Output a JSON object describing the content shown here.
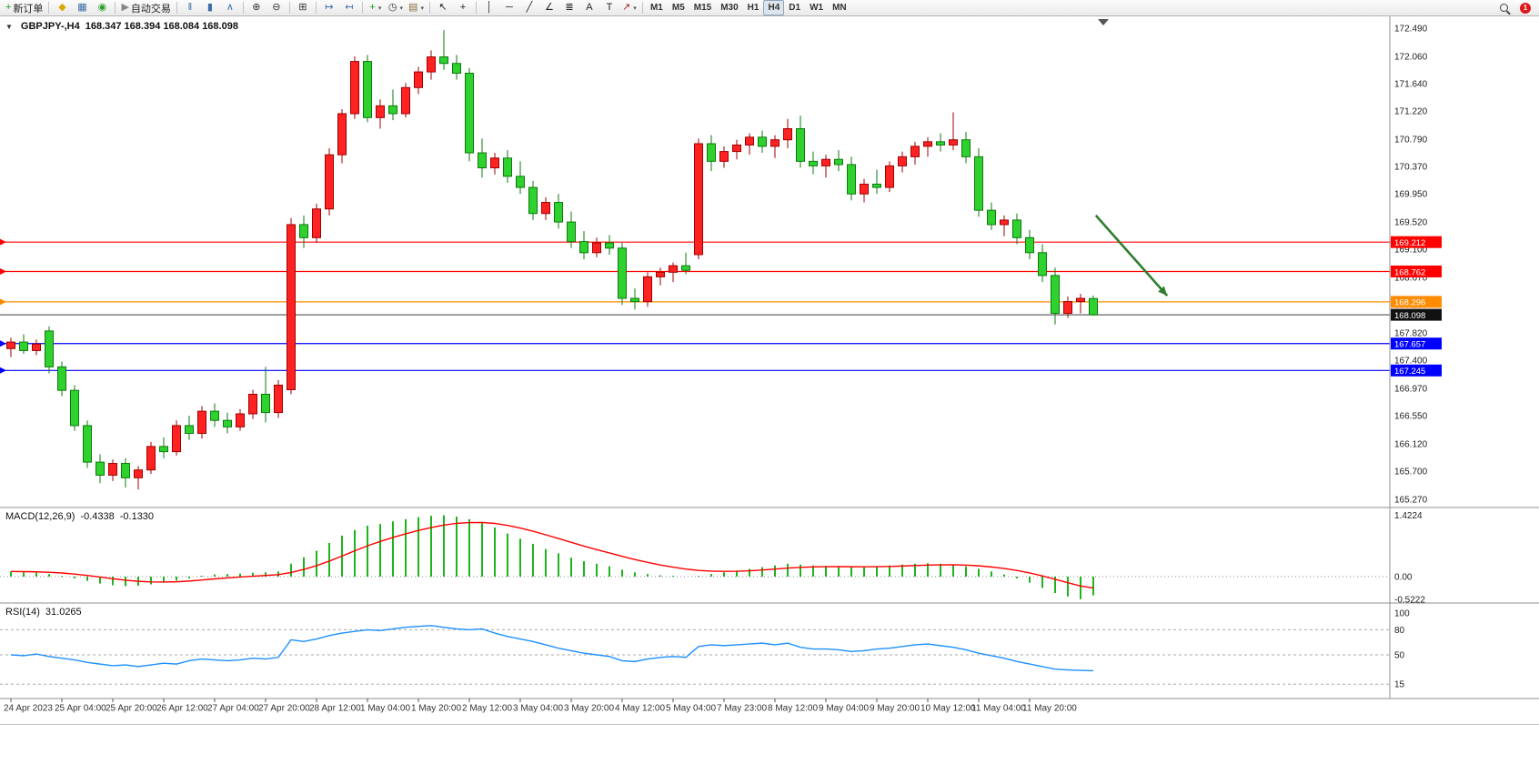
{
  "glyphs": {
    "one_click": "▼",
    "dropdown_caret": "▾"
  },
  "toolbar": {
    "badge": "1",
    "groups": [
      {
        "items": [
          {
            "name": "new-order-button",
            "label": "新订单",
            "glyph": "+",
            "color": "#17a017"
          }
        ]
      },
      {
        "items": [
          {
            "name": "quotes-icon",
            "glyph": "◆",
            "color": "#d8a800"
          },
          {
            "name": "profiles-icon",
            "glyph": "▦",
            "color": "#3a6ea5"
          },
          {
            "name": "refresh-icon",
            "glyph": "◉",
            "color": "#2e9e2e"
          }
        ]
      },
      {
        "items": [
          {
            "name": "auto-trading-button",
            "label": "自动交易",
            "glyph": "▶",
            "color": "#888888"
          }
        ]
      },
      {
        "items": [
          {
            "name": "bar-chart-icon",
            "glyph": "ǁ",
            "color": "#3a6ea5"
          },
          {
            "name": "candlestick-chart-icon",
            "glyph": "▮",
            "color": "#3a6ea5"
          },
          {
            "name": "line-chart-icon",
            "glyph": "∧",
            "color": "#3a6ea5"
          }
        ]
      },
      {
        "items": [
          {
            "name": "zoom-in-icon",
            "glyph": "⊕",
            "color": "#333333"
          },
          {
            "name": "zoom-out-icon",
            "glyph": "⊖",
            "color": "#333333"
          }
        ]
      },
      {
        "items": [
          {
            "name": "tile-windows-icon",
            "glyph": "⊞",
            "color": "#333333"
          }
        ]
      },
      {
        "items": [
          {
            "name": "auto-scroll-icon",
            "glyph": "↦",
            "color": "#3a6ea5"
          },
          {
            "name": "chart-shift-icon",
            "glyph": "↤",
            "color": "#3a6ea5"
          }
        ]
      },
      {
        "items": [
          {
            "name": "indicators-icon",
            "glyph": "+",
            "color": "#17a017",
            "dropdown": true
          },
          {
            "name": "periods-icon",
            "glyph": "◷",
            "color": "#333333",
            "dropdown": true
          },
          {
            "name": "templates-icon",
            "glyph": "▤",
            "color": "#8a6d3b",
            "dropdown": true
          }
        ]
      },
      {
        "items": [
          {
            "name": "cursor-icon",
            "glyph": "↖",
            "color": "#222222"
          },
          {
            "name": "crosshair-icon",
            "glyph": "+",
            "color": "#222222"
          }
        ]
      },
      {
        "items": [
          {
            "name": "vertical-line-icon",
            "glyph": "│",
            "color": "#222222"
          },
          {
            "name": "horizontal-line-icon",
            "glyph": "─",
            "color": "#222222"
          },
          {
            "name": "trendline-icon",
            "glyph": "╱",
            "color": "#222222"
          },
          {
            "name": "channel-icon",
            "glyph": "∠",
            "color": "#222222"
          },
          {
            "name": "fibonacci-icon",
            "glyph": "≣",
            "color": "#222222"
          },
          {
            "name": "text-icon",
            "glyph": "A",
            "color": "#222222"
          },
          {
            "name": "text-label-icon",
            "glyph": "T",
            "color": "#222222"
          },
          {
            "name": "arrows-icon",
            "glyph": "↗",
            "color": "#b02020",
            "dropdown": true
          }
        ]
      }
    ],
    "timeframes": {
      "items": [
        "M1",
        "M5",
        "M15",
        "M30",
        "H1",
        "H4",
        "D1",
        "W1",
        "MN"
      ],
      "active": "H4"
    }
  },
  "chart": {
    "title": "GBPJPY-,H4",
    "quote": "168.347 168.394 168.084 168.098",
    "macd": {
      "name": "MACD(12,26,9)",
      "value_main": "-0.4338",
      "value_signal": "-0.1330"
    },
    "rsi": {
      "name": "RSI(14)",
      "value": "31.0265"
    }
  },
  "chart_data": {
    "type": "candlestick",
    "symbol": "GBPJPY-",
    "timeframe": "H4",
    "up_color": "#ff2222",
    "up_border": "#a00000",
    "down_color": "#2fd12f",
    "down_border": "#0c7a0c",
    "ylim": [
      165.27,
      172.49
    ],
    "ohlc": [
      [
        167.58,
        167.75,
        167.45,
        167.68
      ],
      [
        167.68,
        167.8,
        167.5,
        167.55
      ],
      [
        167.55,
        167.72,
        167.48,
        167.65
      ],
      [
        167.85,
        167.92,
        167.2,
        167.3
      ],
      [
        167.3,
        167.38,
        166.85,
        166.94
      ],
      [
        166.94,
        167.02,
        166.32,
        166.4
      ],
      [
        166.4,
        166.48,
        165.75,
        165.84
      ],
      [
        165.84,
        165.96,
        165.52,
        165.64
      ],
      [
        165.64,
        165.88,
        165.55,
        165.82
      ],
      [
        165.82,
        165.9,
        165.45,
        165.6
      ],
      [
        165.6,
        165.78,
        165.42,
        165.72
      ],
      [
        165.72,
        166.15,
        165.66,
        166.08
      ],
      [
        166.08,
        166.22,
        165.9,
        166.0
      ],
      [
        166.0,
        166.48,
        165.94,
        166.4
      ],
      [
        166.4,
        166.55,
        166.18,
        166.28
      ],
      [
        166.28,
        166.7,
        166.2,
        166.62
      ],
      [
        166.62,
        166.74,
        166.38,
        166.48
      ],
      [
        166.48,
        166.6,
        166.28,
        166.38
      ],
      [
        166.38,
        166.65,
        166.32,
        166.58
      ],
      [
        166.58,
        166.95,
        166.5,
        166.88
      ],
      [
        166.88,
        167.3,
        166.45,
        166.6
      ],
      [
        166.6,
        167.1,
        166.52,
        167.02
      ],
      [
        166.95,
        169.58,
        166.88,
        169.48
      ],
      [
        169.48,
        169.62,
        169.12,
        169.28
      ],
      [
        169.28,
        169.8,
        169.2,
        169.72
      ],
      [
        169.72,
        170.65,
        169.62,
        170.55
      ],
      [
        170.55,
        171.25,
        170.42,
        171.18
      ],
      [
        171.18,
        172.06,
        171.1,
        171.98
      ],
      [
        171.98,
        172.08,
        171.05,
        171.12
      ],
      [
        171.12,
        171.4,
        170.95,
        171.3
      ],
      [
        171.3,
        171.55,
        171.08,
        171.18
      ],
      [
        171.18,
        171.65,
        171.12,
        171.58
      ],
      [
        171.58,
        171.9,
        171.48,
        171.82
      ],
      [
        171.82,
        172.15,
        171.7,
        172.05
      ],
      [
        172.05,
        172.46,
        171.85,
        171.95
      ],
      [
        171.95,
        172.08,
        171.7,
        171.8
      ],
      [
        171.8,
        171.88,
        170.45,
        170.58
      ],
      [
        170.58,
        170.8,
        170.2,
        170.35
      ],
      [
        170.35,
        170.58,
        170.25,
        170.5
      ],
      [
        170.5,
        170.62,
        170.12,
        170.22
      ],
      [
        170.22,
        170.45,
        169.95,
        170.05
      ],
      [
        170.05,
        170.15,
        169.55,
        169.65
      ],
      [
        169.65,
        169.9,
        169.55,
        169.82
      ],
      [
        169.82,
        169.95,
        169.42,
        169.52
      ],
      [
        169.52,
        169.68,
        169.12,
        169.22
      ],
      [
        169.22,
        169.38,
        168.95,
        169.05
      ],
      [
        169.05,
        169.28,
        168.98,
        169.2
      ],
      [
        169.2,
        169.32,
        169.02,
        169.12
      ],
      [
        169.12,
        169.2,
        168.25,
        168.35
      ],
      [
        168.35,
        168.5,
        168.18,
        168.3
      ],
      [
        168.3,
        168.75,
        168.22,
        168.68
      ],
      [
        168.68,
        168.82,
        168.55,
        168.75
      ],
      [
        168.75,
        168.9,
        168.6,
        168.85
      ],
      [
        168.85,
        169.05,
        168.72,
        168.78
      ],
      [
        169.02,
        170.8,
        168.95,
        170.72
      ],
      [
        170.72,
        170.85,
        170.3,
        170.45
      ],
      [
        170.45,
        170.68,
        170.35,
        170.6
      ],
      [
        170.6,
        170.78,
        170.48,
        170.7
      ],
      [
        170.7,
        170.88,
        170.55,
        170.82
      ],
      [
        170.82,
        170.92,
        170.58,
        170.68
      ],
      [
        170.68,
        170.85,
        170.5,
        170.78
      ],
      [
        170.78,
        171.1,
        170.65,
        170.95
      ],
      [
        170.95,
        171.15,
        170.35,
        170.45
      ],
      [
        170.45,
        170.6,
        170.25,
        170.38
      ],
      [
        170.38,
        170.55,
        170.2,
        170.48
      ],
      [
        170.48,
        170.62,
        170.3,
        170.4
      ],
      [
        170.4,
        170.52,
        169.85,
        169.95
      ],
      [
        169.95,
        170.18,
        169.82,
        170.1
      ],
      [
        170.1,
        170.32,
        169.95,
        170.05
      ],
      [
        170.05,
        170.45,
        169.98,
        170.38
      ],
      [
        170.38,
        170.6,
        170.28,
        170.52
      ],
      [
        170.52,
        170.75,
        170.4,
        170.68
      ],
      [
        170.68,
        170.82,
        170.52,
        170.75
      ],
      [
        170.75,
        170.88,
        170.6,
        170.7
      ],
      [
        170.7,
        171.2,
        170.62,
        170.78
      ],
      [
        170.78,
        170.9,
        170.42,
        170.52
      ],
      [
        170.52,
        170.65,
        169.6,
        169.7
      ],
      [
        169.7,
        169.82,
        169.4,
        169.48
      ],
      [
        169.48,
        169.62,
        169.3,
        169.55
      ],
      [
        169.55,
        169.65,
        169.18,
        169.28
      ],
      [
        169.28,
        169.4,
        168.95,
        169.05
      ],
      [
        169.05,
        169.18,
        168.6,
        168.7
      ],
      [
        168.7,
        168.82,
        167.95,
        168.12
      ],
      [
        168.12,
        168.38,
        168.05,
        168.3
      ],
      [
        168.3,
        168.42,
        168.12,
        168.35
      ],
      [
        168.347,
        168.394,
        168.084,
        168.098
      ]
    ],
    "time_labels": [
      {
        "i": 0,
        "t": "24 Apr 2023"
      },
      {
        "i": 4,
        "t": "25 Apr 04:00"
      },
      {
        "i": 8,
        "t": "25 Apr 20:00"
      },
      {
        "i": 12,
        "t": "26 Apr 12:00"
      },
      {
        "i": 16,
        "t": "27 Apr 04:00"
      },
      {
        "i": 20,
        "t": "27 Apr 20:00"
      },
      {
        "i": 24,
        "t": "28 Apr 12:00"
      },
      {
        "i": 28,
        "t": "1 May 04:00"
      },
      {
        "i": 32,
        "t": "1 May 20:00"
      },
      {
        "i": 36,
        "t": "2 May 12:00"
      },
      {
        "i": 40,
        "t": "3 May 04:00"
      },
      {
        "i": 44,
        "t": "3 May 20:00"
      },
      {
        "i": 48,
        "t": "4 May 12:00"
      },
      {
        "i": 52,
        "t": "5 May 04:00"
      },
      {
        "i": 56,
        "t": "7 May 23:00"
      },
      {
        "i": 60,
        "t": "8 May 12:00"
      },
      {
        "i": 64,
        "t": "9 May 04:00"
      },
      {
        "i": 68,
        "t": "9 May 20:00"
      },
      {
        "i": 72,
        "t": "10 May 12:00"
      },
      {
        "i": 76,
        "t": "11 May 04:00"
      },
      {
        "i": 80,
        "t": "11 May 20:00"
      }
    ],
    "price_axis_ticks": [
      "172.490",
      "172.060",
      "171.640",
      "171.220",
      "170.790",
      "170.370",
      "169.950",
      "169.520",
      "169.100",
      "168.670",
      "168.250",
      "167.820",
      "167.400",
      "166.970",
      "166.550",
      "166.120",
      "165.700",
      "165.270"
    ],
    "lines": [
      {
        "name": "resistance-line-1",
        "price": 169.212,
        "label": "169.212",
        "color": "#ff0000"
      },
      {
        "name": "resistance-line-2",
        "price": 168.762,
        "label": "168.762",
        "color": "#ff0000"
      },
      {
        "name": "orange-support-line",
        "price": 168.296,
        "label": "168.296",
        "color": "#ff8c00"
      },
      {
        "name": "blue-support-line-1",
        "price": 167.657,
        "label": "167.657",
        "color": "#0000ff"
      },
      {
        "name": "blue-support-line-2",
        "price": 167.245,
        "label": "167.245",
        "color": "#0000ff"
      }
    ],
    "current_price": {
      "value": 168.098,
      "label": "168.098",
      "color": "#3a3a3a",
      "tag_bg": "#111111"
    },
    "arrow_annotation": {
      "from_index": 85.2,
      "from_price": 169.62,
      "to_index": 90.8,
      "to_price": 168.39,
      "color": "#2e7d2e"
    },
    "macd": {
      "name": "MACD(12,26,9)",
      "params": [
        12,
        26,
        9
      ],
      "color_hist": "#1db41d",
      "color_signal": "#ff0000",
      "signal_ema": 9,
      "ylim": [
        -0.58,
        1.57
      ],
      "axis_ticks": [
        {
          "v": 1.4224,
          "t": "1.4224"
        },
        {
          "v": 0,
          "t": "0.00"
        },
        {
          "v": -0.5222,
          "t": "-0.5222"
        }
      ],
      "values": [
        0.12,
        0.1,
        0.09,
        0.06,
        0.02,
        -0.04,
        -0.1,
        -0.16,
        -0.2,
        -0.22,
        -0.21,
        -0.18,
        -0.14,
        -0.09,
        -0.04,
        0.02,
        0.05,
        0.06,
        0.07,
        0.09,
        0.1,
        0.12,
        0.3,
        0.45,
        0.6,
        0.78,
        0.95,
        1.08,
        1.18,
        1.22,
        1.28,
        1.33,
        1.38,
        1.41,
        1.4224,
        1.39,
        1.33,
        1.27,
        1.14,
        1.0,
        0.88,
        0.76,
        0.64,
        0.54,
        0.44,
        0.36,
        0.3,
        0.24,
        0.16,
        0.1,
        0.06,
        0.03,
        0.02,
        0.0,
        0.02,
        0.06,
        0.1,
        0.14,
        0.18,
        0.22,
        0.26,
        0.3,
        0.28,
        0.26,
        0.25,
        0.24,
        0.22,
        0.22,
        0.24,
        0.26,
        0.28,
        0.3,
        0.31,
        0.3,
        0.28,
        0.24,
        0.18,
        0.12,
        0.05,
        -0.04,
        -0.14,
        -0.26,
        -0.38,
        -0.46,
        -0.5222,
        -0.4338
      ]
    },
    "rsi": {
      "name": "RSI(14)",
      "period": 14,
      "color": "#1E90FF",
      "levels": [
        80,
        50,
        15
      ],
      "ylim": [
        0,
        105
      ],
      "axis_ticks": [
        {
          "v": 100,
          "t": "100"
        },
        {
          "v": 80,
          "t": "80"
        },
        {
          "v": 50,
          "t": "50"
        },
        {
          "v": 15,
          "t": "15"
        }
      ],
      "values": [
        50,
        49,
        51,
        48,
        46,
        44,
        41,
        39,
        37,
        38,
        36,
        38,
        40,
        39,
        43,
        45,
        44,
        43,
        44,
        46,
        45,
        47,
        68,
        66,
        69,
        73,
        76,
        78,
        80,
        79,
        81,
        83,
        84,
        85,
        83,
        81,
        80,
        81,
        76,
        72,
        69,
        66,
        62,
        58,
        55,
        52,
        50,
        48,
        43,
        42,
        45,
        47,
        48,
        47,
        60,
        62,
        61,
        62,
        63,
        64,
        62,
        64,
        59,
        57,
        57,
        56,
        54,
        55,
        57,
        58,
        60,
        62,
        63,
        61,
        59,
        56,
        52,
        49,
        46,
        42,
        39,
        36,
        33,
        32,
        31.5,
        31.0265
      ]
    }
  }
}
